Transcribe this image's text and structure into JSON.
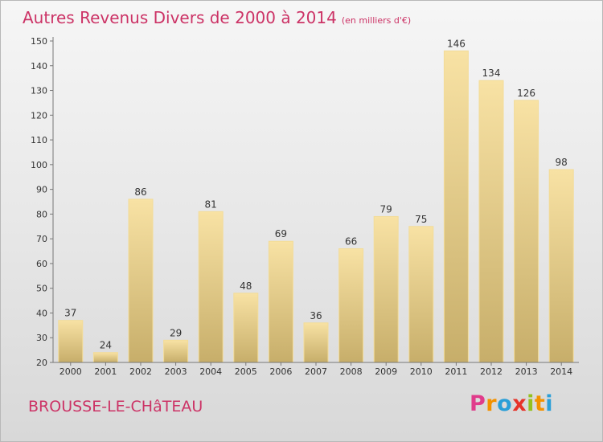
{
  "header": {
    "title": "Autres Revenus Divers de 2000 à 2014",
    "subtitle": "(en milliers d'€)"
  },
  "commune": "BROUSSE-LE-CHâTEAU",
  "brand": {
    "name": "Proxiti",
    "letters": [
      "P",
      "r",
      "o",
      "x",
      "i",
      "t",
      "i"
    ],
    "colors": [
      "#e03b8b",
      "#f39200",
      "#2a9fd8",
      "#e6332a",
      "#95c11f",
      "#f39200",
      "#2a9fd8"
    ]
  },
  "colors": {
    "accent": "#cc3366",
    "bar_light": "#f8e2a4",
    "bar_dark": "#c7ae6a"
  },
  "chart_data": {
    "type": "bar",
    "title": "Autres Revenus Divers de 2000 à 2014",
    "subtitle": "(en milliers d'€)",
    "categories": [
      "2000",
      "2001",
      "2002",
      "2003",
      "2004",
      "2005",
      "2006",
      "2007",
      "2008",
      "2009",
      "2010",
      "2011",
      "2012",
      "2013",
      "2014"
    ],
    "values": [
      37,
      24,
      86,
      29,
      81,
      48,
      69,
      36,
      66,
      79,
      75,
      146,
      134,
      126,
      98
    ],
    "ylim": [
      20,
      150
    ],
    "yticks": [
      20,
      30,
      40,
      50,
      60,
      70,
      80,
      90,
      100,
      110,
      120,
      130,
      140,
      150
    ],
    "grid": false,
    "data_labels": true
  }
}
